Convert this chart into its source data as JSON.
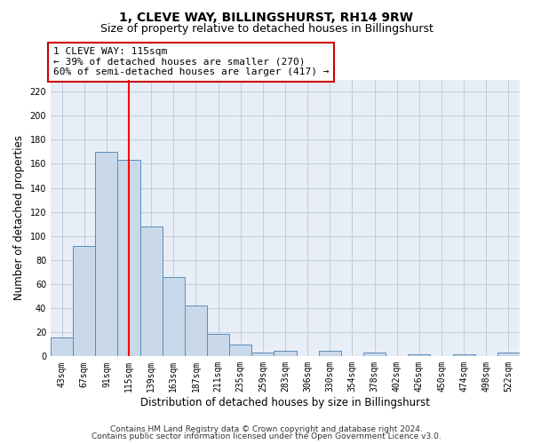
{
  "title": "1, CLEVE WAY, BILLINGSHURST, RH14 9RW",
  "subtitle": "Size of property relative to detached houses in Billingshurst",
  "xlabel": "Distribution of detached houses by size in Billingshurst",
  "ylabel": "Number of detached properties",
  "categories": [
    "43sqm",
    "67sqm",
    "91sqm",
    "115sqm",
    "139sqm",
    "163sqm",
    "187sqm",
    "211sqm",
    "235sqm",
    "259sqm",
    "283sqm",
    "306sqm",
    "330sqm",
    "354sqm",
    "378sqm",
    "402sqm",
    "426sqm",
    "450sqm",
    "474sqm",
    "498sqm",
    "522sqm"
  ],
  "values": [
    16,
    92,
    170,
    163,
    108,
    66,
    42,
    19,
    10,
    3,
    5,
    0,
    5,
    0,
    3,
    0,
    2,
    0,
    2,
    0,
    3
  ],
  "bar_color": "#c9d9ea",
  "bar_edge_color": "#5b8db8",
  "red_line_index": 3,
  "annotation_line1": "1 CLEVE WAY: 115sqm",
  "annotation_line2": "← 39% of detached houses are smaller (270)",
  "annotation_line3": "60% of semi-detached houses are larger (417) →",
  "annotation_box_color": "#ffffff",
  "annotation_box_edge": "#cc0000",
  "ylim": [
    0,
    230
  ],
  "yticks": [
    0,
    20,
    40,
    60,
    80,
    100,
    120,
    140,
    160,
    180,
    200,
    220
  ],
  "grid_color": "#c0ccd8",
  "bg_color": "#e8eef8",
  "footer_line1": "Contains HM Land Registry data © Crown copyright and database right 2024.",
  "footer_line2": "Contains public sector information licensed under the Open Government Licence v3.0.",
  "title_fontsize": 10,
  "subtitle_fontsize": 9,
  "axis_label_fontsize": 8.5,
  "tick_fontsize": 7,
  "annotation_fontsize": 8,
  "footer_fontsize": 6.5
}
